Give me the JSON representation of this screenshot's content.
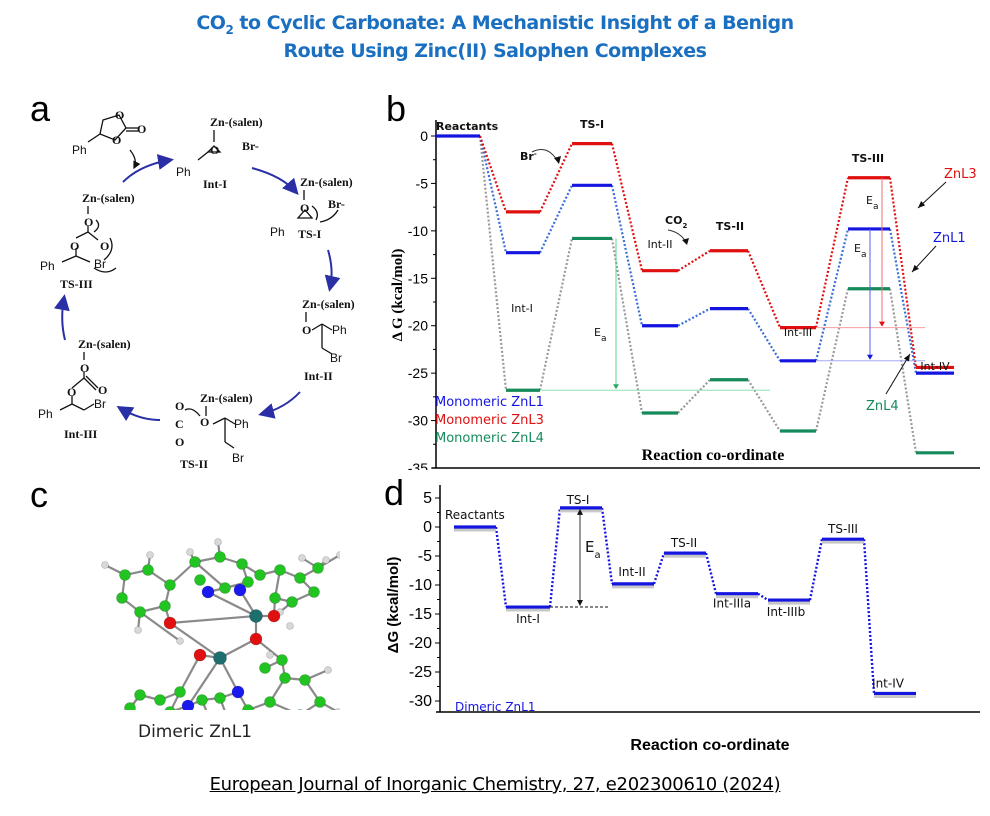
{
  "header": {
    "title_line1_prefix": "CO",
    "title_line1_sub": "2",
    "title_line1_rest": " to Cyclic Carbonate: A Mechanistic Insight of a Benign",
    "title_line2": "Route Using Zinc(II) Salophen Complexes",
    "title_color": "#1a6fc0"
  },
  "panels": {
    "a": "a",
    "b": "b",
    "c": "c",
    "d": "d"
  },
  "scheme_a": {
    "species": [
      {
        "id": "product",
        "text": "cyclic carbonate (Ph-substituted)"
      },
      {
        "id": "int1",
        "label": "Int-I",
        "top": "Zn-(salen)",
        "extra": "Br-"
      },
      {
        "id": "ts1",
        "label": "TS-I",
        "top": "Zn-(salen)",
        "extra": "Br-"
      },
      {
        "id": "int2",
        "label": "Int-II",
        "top": "Zn-(salen)"
      },
      {
        "id": "ts2",
        "label": "TS-II",
        "top": "Zn-(salen)"
      },
      {
        "id": "int3",
        "label": "Int-III",
        "top": "Zn-(salen)"
      },
      {
        "id": "ts3",
        "label": "TS-III",
        "top": "Zn-(salen)"
      }
    ],
    "atoms": {
      "ph": "Ph",
      "br": "Br",
      "o": "O",
      "c": "C"
    },
    "arrow_color": "#2b2fa6"
  },
  "molecule_c": {
    "caption": "Dimeric ZnL1",
    "atom_colors": {
      "C": "#22c422",
      "H": "#d8d8d8",
      "N": "#1a1aee",
      "O": "#e01010",
      "Zn": "#1f6e6e"
    }
  },
  "citation": "European Journal of Inorganic Chemistry, 27, e202300610 (2024)",
  "chart_data": [
    {
      "id": "b",
      "type": "line",
      "subtype": "energy-profile",
      "title": "",
      "xlabel": "Reaction co-ordinate",
      "ylabel": "Δ G (kcal/mol)",
      "ylim": [
        -35,
        0
      ],
      "yticks": [
        0,
        -5,
        -10,
        -15,
        -20,
        -25,
        -30,
        -35
      ],
      "categories": [
        "Reactants",
        "Int-I",
        "TS-I",
        "Int-II",
        "TS-II",
        "Int-III",
        "TS-III",
        "Int-IV"
      ],
      "series": [
        {
          "name": "Monomeric ZnL1",
          "color": "#1515e0",
          "connector_color": "#3a6fd8",
          "values": [
            0,
            -12.3,
            -5.2,
            -20.0,
            -18.2,
            -23.7,
            -9.8,
            -25.0
          ]
        },
        {
          "name": "Monomeric ZnL3",
          "color": "#e01010",
          "connector_color": "#e01010",
          "values": [
            0,
            -8.0,
            -0.8,
            -14.2,
            -12.1,
            -20.2,
            -4.4,
            -24.4
          ]
        },
        {
          "name": "Monomeric ZnL4",
          "color": "#158a5a",
          "connector_color": "#9a9a9a",
          "values": [
            0,
            -26.8,
            -10.8,
            -29.2,
            -25.7,
            -31.1,
            -16.1,
            -33.4
          ]
        }
      ],
      "legend": {
        "placement": "bottom-left",
        "entries": [
          "Monomeric ZnL1",
          "Monomeric ZnL3",
          "Monomeric ZnL4"
        ]
      },
      "annotations": [
        {
          "text": "Br",
          "sup": "-",
          "near": "Int-I to TS-I"
        },
        {
          "text": "CO",
          "sub": "2",
          "near": "Int-II to TS-II"
        },
        {
          "text": "E",
          "sub": "a",
          "series": "Monomeric ZnL4",
          "from": "Int-I",
          "to": "TS-I"
        },
        {
          "text": "E",
          "sub": "a",
          "series": "Monomeric ZnL3",
          "from": "Int-III",
          "to": "TS-III"
        },
        {
          "text": "E",
          "sub": "a",
          "series": "Monomeric ZnL1",
          "from": "Int-III",
          "to": "TS-III"
        },
        {
          "text": "ZnL3",
          "color": "#e01010"
        },
        {
          "text": "ZnL1",
          "color": "#1515e0"
        },
        {
          "text": "ZnL4",
          "color": "#158a5a"
        }
      ]
    },
    {
      "id": "d",
      "type": "line",
      "subtype": "energy-profile",
      "title": "",
      "xlabel": "Reaction co-ordinate",
      "ylabel": "ΔG (kcal/mol)",
      "ylim": [
        -32,
        7
      ],
      "yticks": [
        5,
        0,
        -5,
        -10,
        -15,
        -20,
        -25,
        -30
      ],
      "categories": [
        "Reactants",
        "Int-I",
        "TS-I",
        "Int-II",
        "TS-II",
        "Int-IIIa",
        "Int-IIIb",
        "TS-III",
        "Int-IV"
      ],
      "series": [
        {
          "name": "Dimeric ZnL1",
          "color": "#1515e0",
          "values": [
            0,
            -13.8,
            3.3,
            -9.8,
            -4.5,
            -11.5,
            -12.6,
            -2.1,
            -28.7
          ]
        }
      ],
      "legend": {
        "placement": "bottom-left",
        "entries": [
          "Dimeric ZnL1"
        ]
      },
      "annotations": [
        {
          "text": "E",
          "sub": "a",
          "from": "Int-I",
          "to": "TS-I"
        }
      ]
    }
  ]
}
